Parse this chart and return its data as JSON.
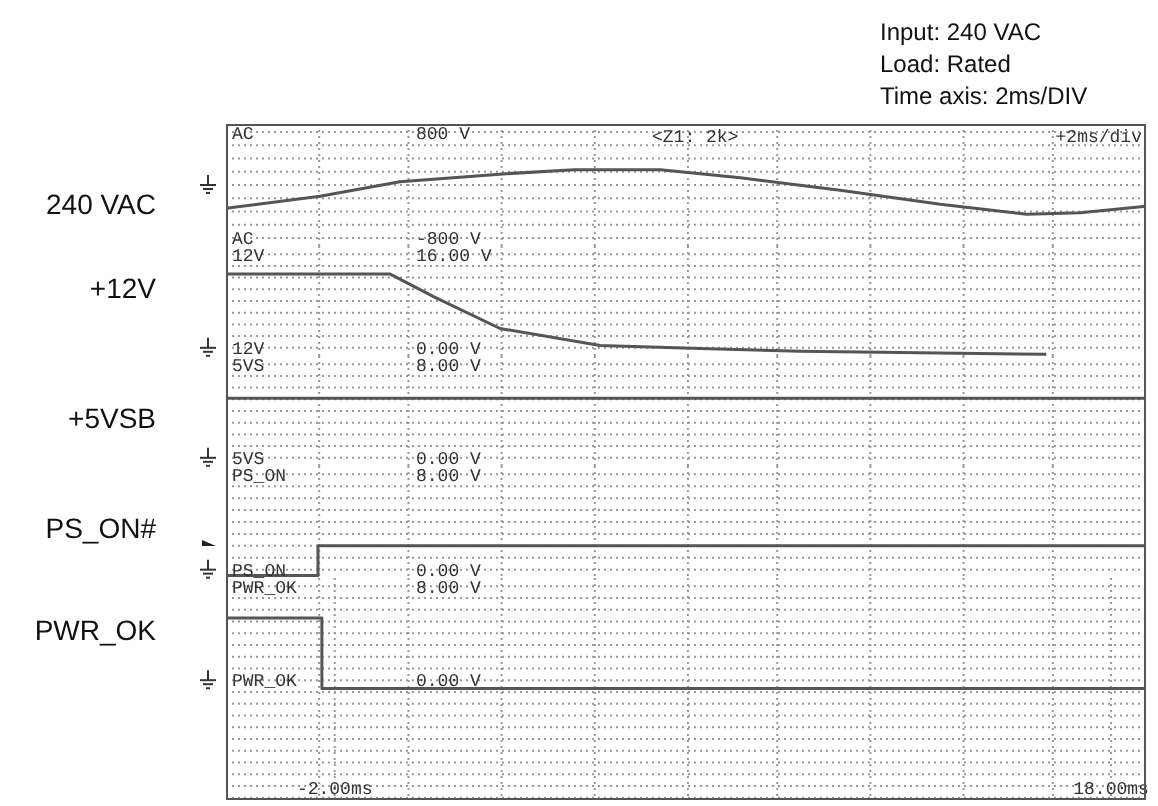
{
  "chart_data": [
    {
      "type": "line",
      "title": "Input: 240 VAC\nLoad: Rated\nTime axis: 2ms/DIV",
      "ylabel": "240 VAC",
      "annotations": [
        "AC",
        "AC",
        "<Z1: 2k>",
        "+2ms/div"
      ],
      "x": [
        -4.8,
        -2.38,
        -0.32,
        2.42,
        4.17,
        6.39,
        8.45,
        11.02,
        13.6,
        15.82,
        17.21,
        18.9
      ],
      "values": [
        -350,
        -170,
        50,
        170,
        230,
        230,
        110,
        -80,
        -290,
        -440,
        -420,
        -320
      ],
      "color": "#555555",
      "xlim": [
        -4.8,
        18.9
      ],
      "xticks": [
        {
          "value": -2.4,
          "label": null
        },
        {
          "value": -0.1,
          "label": null
        },
        {
          "value": 2.3,
          "label": null
        },
        {
          "value": 4.7,
          "label": null
        },
        {
          "value": 7.1,
          "label": null
        },
        {
          "value": 9.4,
          "label": null
        },
        {
          "value": 11.8,
          "label": null
        },
        {
          "value": 14.2,
          "label": null
        },
        {
          "value": 16.5,
          "label": null
        }
      ],
      "ylim": [
        -920,
        920
      ],
      "yticks": [
        {
          "value": -800,
          "label": "-800 V"
        },
        {
          "value": -600,
          "label": null
        },
        {
          "value": -400,
          "label": null
        },
        {
          "value": -200,
          "label": null
        },
        {
          "value": 0,
          "label": null
        },
        {
          "value": 200,
          "label": null
        },
        {
          "value": 400,
          "label": null
        },
        {
          "value": 600,
          "label": null
        },
        {
          "value": 800,
          "label": "800 V"
        }
      ],
      "grid": true,
      "tick_labels": "y"
    },
    {
      "type": "line",
      "ylabel": "+12V",
      "annotations": [
        "12V",
        "12V"
      ],
      "x": [
        -4.8,
        -0.57,
        0.56,
        2.26,
        4.84,
        7.42,
        9.99,
        16.33
      ],
      "values": [
        12.6,
        12.6,
        8.7,
        3.3,
        0.4,
        -0.1,
        -0.6,
        -1.1
      ],
      "color": "#555555",
      "xlim": [
        -4.8,
        18.9
      ],
      "xticks": [
        {
          "value": -2.4,
          "label": null
        },
        {
          "value": -0.1,
          "label": null
        },
        {
          "value": 2.3,
          "label": null
        },
        {
          "value": 4.7,
          "label": null
        },
        {
          "value": 7.1,
          "label": null
        },
        {
          "value": 9.4,
          "label": null
        },
        {
          "value": 11.8,
          "label": null
        },
        {
          "value": 14.2,
          "label": null
        },
        {
          "value": 16.5,
          "label": null
        }
      ],
      "ylim": [
        -1.4,
        17.4
      ],
      "yticks": [
        {
          "value": 0,
          "label": "0.00 V"
        },
        {
          "value": 2,
          "label": null
        },
        {
          "value": 4,
          "label": null
        },
        {
          "value": 6,
          "label": null
        },
        {
          "value": 8,
          "label": null
        },
        {
          "value": 10,
          "label": null
        },
        {
          "value": 12,
          "label": null
        },
        {
          "value": 14,
          "label": null
        },
        {
          "value": 16,
          "label": "16.00 V"
        }
      ],
      "grid": true,
      "tick_labels": "y"
    },
    {
      "type": "line",
      "ylabel": "+5VSB",
      "annotations": [
        "5VS",
        "5VS"
      ],
      "x": [
        -4.8,
        18.9
      ],
      "values": [
        5.1,
        5.1
      ],
      "color": "#555555",
      "xlim": [
        -4.8,
        18.9
      ],
      "xticks": [
        {
          "value": -2.4,
          "label": null
        },
        {
          "value": -0.1,
          "label": null
        },
        {
          "value": 2.3,
          "label": null
        },
        {
          "value": 4.7,
          "label": null
        },
        {
          "value": 7.1,
          "label": null
        },
        {
          "value": 9.4,
          "label": null
        },
        {
          "value": 11.8,
          "label": null
        },
        {
          "value": 14.2,
          "label": null
        },
        {
          "value": 16.5,
          "label": null
        }
      ],
      "ylim": [
        -0.7,
        8.7
      ],
      "yticks": [
        {
          "value": 0,
          "label": "0.00 V"
        },
        {
          "value": 1,
          "label": null
        },
        {
          "value": 2,
          "label": null
        },
        {
          "value": 3,
          "label": null
        },
        {
          "value": 4,
          "label": null
        },
        {
          "value": 5,
          "label": null
        },
        {
          "value": 6,
          "label": null
        },
        {
          "value": 7,
          "label": null
        },
        {
          "value": 8,
          "label": "8.00 V"
        }
      ],
      "grid": true,
      "tick_labels": "y"
    },
    {
      "type": "line",
      "ylabel": "PS_ON#",
      "annotations": [
        "PS_ON",
        "PS_ON"
      ],
      "x": [
        -4.8,
        -2.43,
        -2.43,
        18.9
      ],
      "values": [
        -0.5,
        -0.5,
        2.0,
        2.0
      ],
      "color": "#555555",
      "xlim": [
        -4.8,
        18.9
      ],
      "xticks": [
        {
          "value": -2.4,
          "label": null
        },
        {
          "value": -0.1,
          "label": null
        },
        {
          "value": 2.3,
          "label": null
        },
        {
          "value": 4.7,
          "label": null
        },
        {
          "value": 7.1,
          "label": null
        },
        {
          "value": 9.4,
          "label": null
        },
        {
          "value": 11.8,
          "label": null
        },
        {
          "value": 14.2,
          "label": null
        },
        {
          "value": 16.5,
          "label": null
        }
      ],
      "ylim": [
        -0.7,
        8.7
      ],
      "yticks": [
        {
          "value": 0,
          "label": "0.00 V"
        },
        {
          "value": 1,
          "label": null
        },
        {
          "value": 2,
          "label": null
        },
        {
          "value": 3,
          "label": null
        },
        {
          "value": 4,
          "label": null
        },
        {
          "value": 5,
          "label": null
        },
        {
          "value": 6,
          "label": null
        },
        {
          "value": 7,
          "label": null
        },
        {
          "value": 8,
          "label": "8.00 V"
        }
      ],
      "grid": true,
      "tick_labels": "y"
    },
    {
      "type": "line",
      "ylabel": "PWR_OK",
      "annotations": [
        "PWR_OK",
        "PWR_OK"
      ],
      "x": [
        -4.8,
        -2.33,
        -2.33,
        18.9
      ],
      "values": [
        5.3,
        5.3,
        -0.7,
        -0.7
      ],
      "color": "#555555",
      "xlim": [
        -4.8,
        18.9
      ],
      "xticks": [
        {
          "value": -2,
          "label": "-2.00ms"
        },
        {
          "value": -2.4,
          "label": null
        },
        {
          "value": -0.1,
          "label": null
        },
        {
          "value": 2.3,
          "label": null
        },
        {
          "value": 4.7,
          "label": null
        },
        {
          "value": 7.1,
          "label": null
        },
        {
          "value": 9.4,
          "label": null
        },
        {
          "value": 11.8,
          "label": null
        },
        {
          "value": 14.2,
          "label": null
        },
        {
          "value": 16.5,
          "label": null
        },
        {
          "value": 18,
          "label": "18.00ms"
        }
      ],
      "ylim": [
        -10.2,
        8.7
      ],
      "yticks": [
        {
          "value": -10,
          "label": null
        },
        {
          "value": -9,
          "label": null
        },
        {
          "value": -8,
          "label": null
        },
        {
          "value": -7,
          "label": null
        },
        {
          "value": -6,
          "label": null
        },
        {
          "value": -5,
          "label": null
        },
        {
          "value": -4,
          "label": null
        },
        {
          "value": -3,
          "label": null
        },
        {
          "value": -2,
          "label": null
        },
        {
          "value": -1,
          "label": null
        },
        {
          "value": 0,
          "label": "0.00 V"
        },
        {
          "value": 1,
          "label": null
        },
        {
          "value": 2,
          "label": null
        },
        {
          "value": 3,
          "label": null
        },
        {
          "value": 4,
          "label": null
        },
        {
          "value": 5,
          "label": null
        },
        {
          "value": 6,
          "label": null
        },
        {
          "value": 7,
          "label": null
        },
        {
          "value": 8,
          "label": "8.00 V"
        }
      ],
      "grid": true
    }
  ]
}
